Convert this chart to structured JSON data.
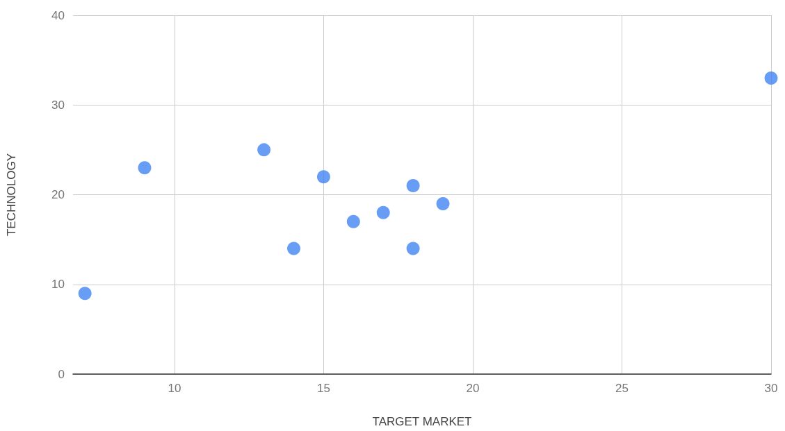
{
  "chart_data": {
    "type": "scatter",
    "xlabel": "TARGET MARKET",
    "ylabel": "TECHNOLOGY",
    "x": [
      7,
      9,
      13,
      14,
      15,
      16,
      17,
      18,
      18,
      19,
      30
    ],
    "values": [
      9,
      23,
      25,
      14,
      22,
      17,
      18,
      21,
      14,
      19,
      33
    ],
    "color": "#4285f4",
    "marker": "circle",
    "xlim": [
      6.6,
      30
    ],
    "ylim": [
      0,
      40
    ],
    "xticks": [
      10,
      15,
      20,
      25,
      30
    ],
    "yticks": [
      0,
      10,
      20,
      30,
      40
    ],
    "grid": true
  }
}
